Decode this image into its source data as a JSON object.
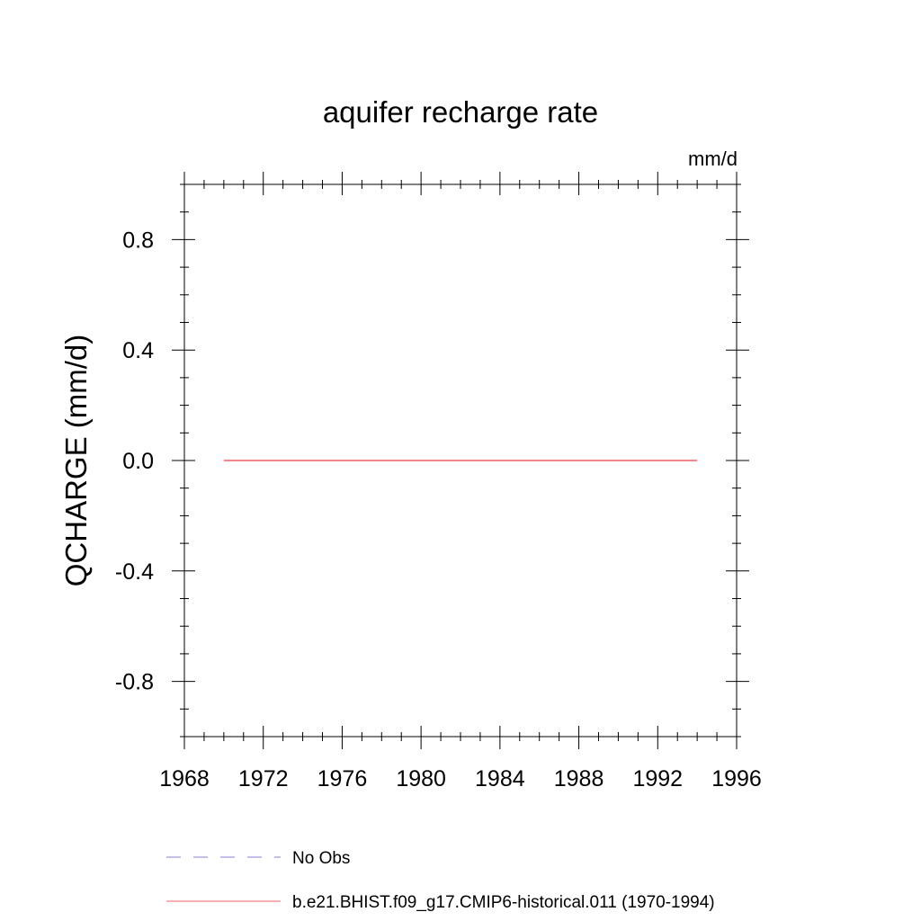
{
  "chart_data": {
    "type": "line",
    "title": "aquifer recharge rate",
    "units_label": "mm/d",
    "xlabel": "",
    "ylabel": "QCHARGE  (mm/d)",
    "xlim": [
      1968,
      1996
    ],
    "ylim": [
      -1.0,
      1.0
    ],
    "x_ticks": [
      1968,
      1972,
      1976,
      1980,
      1984,
      1988,
      1992,
      1996
    ],
    "x_tick_labels": [
      "1968",
      "1972",
      "1976",
      "1980",
      "1984",
      "1988",
      "1992",
      "1996"
    ],
    "x_minor_step": 1,
    "y_ticks": [
      0.8,
      0.4,
      0.0,
      -0.4,
      -0.8
    ],
    "y_tick_labels": [
      "0.8",
      "0.4",
      "0.0",
      "-0.4",
      "-0.8"
    ],
    "y_minor_step": 0.1,
    "grid": false,
    "legend_position": "bottom",
    "series": [
      {
        "name": "No Obs",
        "x": [],
        "y": [],
        "color": "#8a7fd0",
        "dash": "dashed"
      },
      {
        "name": "b.e21.BHIST.f09_g17.CMIP6-historical.011 (1970-1994)",
        "x": [
          1970,
          1994
        ],
        "y": [
          0.0,
          0.0
        ],
        "color": "#f06060",
        "dash": "solid"
      }
    ]
  }
}
